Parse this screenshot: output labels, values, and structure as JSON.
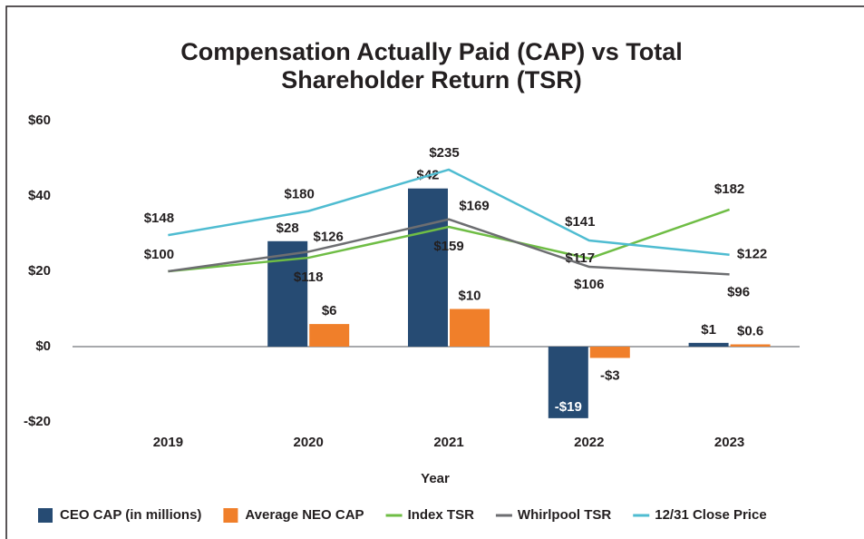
{
  "chart_data": {
    "type": "bar-line",
    "title": "Compensation Actually Paid (CAP) vs Total Shareholder Return (TSR)",
    "xlabel": "Year",
    "categories": [
      "2019",
      "2020",
      "2021",
      "2022",
      "2023"
    ],
    "ylim": [
      -20,
      60
    ],
    "yticks": [
      {
        "value": -20,
        "label": "-$20"
      },
      {
        "value": 0,
        "label": "$0"
      },
      {
        "value": 20,
        "label": "$20"
      },
      {
        "value": 40,
        "label": "$40"
      },
      {
        "value": 60,
        "label": "$60"
      }
    ],
    "y2lim": [
      -100,
      300
    ],
    "legend": "bottom",
    "series": [
      {
        "name": "CEO CAP (in millions)",
        "kind": "bar",
        "color": "#264b73",
        "values": [
          null,
          28,
          42,
          -19,
          1
        ],
        "value_labels": [
          null,
          "$28",
          "$42",
          "-$19",
          "$1"
        ]
      },
      {
        "name": "Average NEO CAP",
        "kind": "bar",
        "color": "#f07f2a",
        "values": [
          null,
          6,
          10,
          -3,
          0.6
        ],
        "value_labels": [
          null,
          "$6",
          "$10",
          "-$3",
          "$0.6"
        ]
      },
      {
        "name": "Index TSR",
        "kind": "line",
        "axis": "y2",
        "color": "#6fbd45",
        "values": [
          100,
          118,
          159,
          117,
          182
        ],
        "value_labels": [
          null,
          "$118",
          "$159",
          "$117",
          "$182"
        ]
      },
      {
        "name": "Whirlpool TSR",
        "kind": "line",
        "axis": "y2",
        "color": "#6d6e71",
        "values": [
          100,
          126,
          169,
          106,
          96
        ],
        "value_labels": [
          "$100",
          "$126",
          "$169",
          "$106",
          "$96"
        ]
      },
      {
        "name": "12/31 Close Price",
        "kind": "line",
        "axis": "y2",
        "color": "#4fbcd1",
        "values": [
          148,
          180,
          235,
          141,
          122
        ],
        "value_labels": [
          "$148",
          "$180",
          "$235",
          "$141",
          "$122"
        ]
      }
    ]
  }
}
